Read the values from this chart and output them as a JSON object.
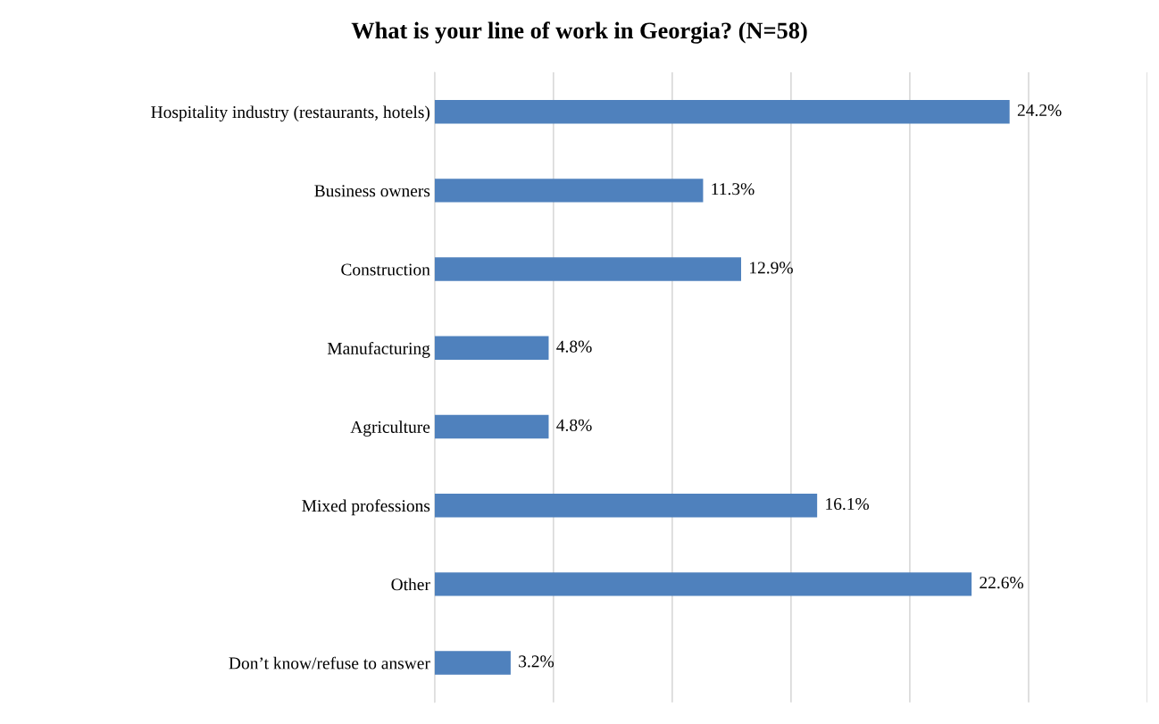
{
  "chart_data": {
    "type": "bar",
    "orientation": "horizontal",
    "title": "What is your line of work in Georgia? (N=58)",
    "categories": [
      "Hospitality industry (restaurants, hotels)",
      "Business owners",
      "Construction",
      "Manufacturing",
      "Agriculture",
      "Mixed professions",
      "Other",
      "Don’t know/refuse to answer"
    ],
    "values": [
      24.2,
      11.3,
      12.9,
      4.8,
      4.8,
      16.1,
      22.6,
      3.2
    ],
    "value_labels": [
      "24.2%",
      "11.3%",
      "12.9%",
      "4.8%",
      "4.8%",
      "16.1%",
      "22.6%",
      "3.2%"
    ],
    "color": "#4f81bd",
    "xlim": [
      0,
      30
    ],
    "xticks": [
      {
        "value": 0,
        "label": null
      },
      {
        "value": 5,
        "label": null
      },
      {
        "value": 10,
        "label": null
      },
      {
        "value": 15,
        "label": null
      },
      {
        "value": 20,
        "label": null
      },
      {
        "value": 25,
        "label": null
      },
      {
        "value": 30,
        "label": null
      }
    ],
    "grid": "x",
    "tick_labels": "y"
  }
}
